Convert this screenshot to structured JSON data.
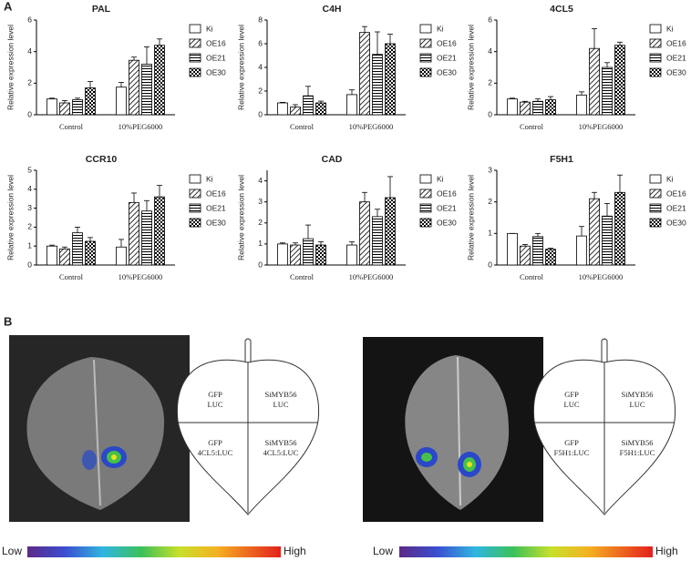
{
  "panels": [
    "A",
    "B"
  ],
  "chart_data": [
    {
      "type": "bar",
      "title": "PAL",
      "y_label": "Relative expression level",
      "categories": [
        "Control",
        "10%PEG6000"
      ],
      "ylim": [
        0,
        6
      ],
      "yticks": [
        0,
        2,
        4,
        6
      ],
      "series": [
        {
          "name": "Ki",
          "color": "#000000",
          "hatch": "none",
          "values": [
            1.0,
            1.75
          ],
          "errors": [
            0.05,
            0.3
          ]
        },
        {
          "name": "OE16",
          "color": "#000000",
          "hatch": "diagonal",
          "values": [
            0.75,
            3.45
          ],
          "errors": [
            0.15,
            0.2
          ]
        },
        {
          "name": "OE21",
          "color": "#000000",
          "hatch": "horizontal",
          "values": [
            0.95,
            3.2
          ],
          "errors": [
            0.1,
            1.1
          ]
        },
        {
          "name": "OE30",
          "color": "#000000",
          "hatch": "checker",
          "values": [
            1.7,
            4.4
          ],
          "errors": [
            0.4,
            0.4
          ]
        }
      ]
    },
    {
      "type": "bar",
      "title": "C4H",
      "y_label": "Relative expression level",
      "categories": [
        "Control",
        "10%PEG6000"
      ],
      "ylim": [
        0,
        8
      ],
      "yticks": [
        0,
        2,
        4,
        6,
        8
      ],
      "series": [
        {
          "name": "Ki",
          "color": "#000000",
          "hatch": "none",
          "values": [
            1.0,
            1.7
          ],
          "errors": [
            0.05,
            0.4
          ]
        },
        {
          "name": "OE16",
          "color": "#000000",
          "hatch": "diagonal",
          "values": [
            0.65,
            6.95
          ],
          "errors": [
            0.2,
            0.5
          ]
        },
        {
          "name": "OE21",
          "color": "#000000",
          "hatch": "horizontal",
          "values": [
            1.6,
            5.1
          ],
          "errors": [
            0.8,
            1.9
          ]
        },
        {
          "name": "OE30",
          "color": "#000000",
          "hatch": "checker",
          "values": [
            1.0,
            6.0
          ],
          "errors": [
            0.15,
            0.8
          ]
        }
      ]
    },
    {
      "type": "bar",
      "title": "4CL5",
      "y_label": "Relative expression level",
      "categories": [
        "Control",
        "10%PEG6000"
      ],
      "ylim": [
        0,
        6
      ],
      "yticks": [
        0,
        2,
        4,
        6
      ],
      "series": [
        {
          "name": "Ki",
          "color": "#000000",
          "hatch": "none",
          "values": [
            1.0,
            1.25
          ],
          "errors": [
            0.05,
            0.2
          ]
        },
        {
          "name": "OE16",
          "color": "#000000",
          "hatch": "diagonal",
          "values": [
            0.8,
            4.2
          ],
          "errors": [
            0.05,
            1.25
          ]
        },
        {
          "name": "OE21",
          "color": "#000000",
          "hatch": "horizontal",
          "values": [
            0.85,
            3.0
          ],
          "errors": [
            0.15,
            0.3
          ]
        },
        {
          "name": "OE30",
          "color": "#000000",
          "hatch": "checker",
          "values": [
            0.95,
            4.4
          ],
          "errors": [
            0.2,
            0.2
          ]
        }
      ]
    },
    {
      "type": "bar",
      "title": "CCR10",
      "y_label": "Relative expression level",
      "categories": [
        "Control",
        "10%PEG6000"
      ],
      "ylim": [
        0,
        5
      ],
      "yticks": [
        0,
        1,
        2,
        3,
        4,
        5
      ],
      "series": [
        {
          "name": "Ki",
          "color": "#000000",
          "hatch": "none",
          "values": [
            1.0,
            0.95
          ],
          "errors": [
            0.05,
            0.4
          ]
        },
        {
          "name": "OE16",
          "color": "#000000",
          "hatch": "diagonal",
          "values": [
            0.85,
            3.3
          ],
          "errors": [
            0.1,
            0.5
          ]
        },
        {
          "name": "OE21",
          "color": "#000000",
          "hatch": "horizontal",
          "values": [
            1.7,
            2.85
          ],
          "errors": [
            0.3,
            0.55
          ]
        },
        {
          "name": "OE30",
          "color": "#000000",
          "hatch": "checker",
          "values": [
            1.25,
            3.6
          ],
          "errors": [
            0.2,
            0.6
          ]
        }
      ]
    },
    {
      "type": "bar",
      "title": "CAD",
      "y_label": "Relative expression level",
      "categories": [
        "Control",
        "10%PEG6000"
      ],
      "ylim": [
        0,
        4.5
      ],
      "yticks": [
        0,
        1,
        2,
        3,
        4
      ],
      "series": [
        {
          "name": "Ki",
          "color": "#000000",
          "hatch": "none",
          "values": [
            1.0,
            0.95
          ],
          "errors": [
            0.05,
            0.15
          ]
        },
        {
          "name": "OE16",
          "color": "#000000",
          "hatch": "diagonal",
          "values": [
            0.95,
            3.0
          ],
          "errors": [
            0.1,
            0.45
          ]
        },
        {
          "name": "OE21",
          "color": "#000000",
          "hatch": "horizontal",
          "values": [
            1.25,
            2.3
          ],
          "errors": [
            0.65,
            0.35
          ]
        },
        {
          "name": "OE30",
          "color": "#000000",
          "hatch": "checker",
          "values": [
            0.95,
            3.2
          ],
          "errors": [
            0.15,
            1.0
          ]
        }
      ]
    },
    {
      "type": "bar",
      "title": "F5H1",
      "y_label": "Relative expression level",
      "categories": [
        "Control",
        "10%PEG6000"
      ],
      "ylim": [
        0,
        3
      ],
      "yticks": [
        0,
        1,
        2,
        3
      ],
      "series": [
        {
          "name": "Ki",
          "color": "#000000",
          "hatch": "none",
          "values": [
            1.0,
            0.92
          ],
          "errors": [
            0.0,
            0.3
          ]
        },
        {
          "name": "OE16",
          "color": "#000000",
          "hatch": "diagonal",
          "values": [
            0.6,
            2.1
          ],
          "errors": [
            0.05,
            0.2
          ]
        },
        {
          "name": "OE21",
          "color": "#000000",
          "hatch": "horizontal",
          "values": [
            0.9,
            1.55
          ],
          "errors": [
            0.1,
            0.4
          ]
        },
        {
          "name": "OE30",
          "color": "#000000",
          "hatch": "checker",
          "values": [
            0.5,
            2.3
          ],
          "errors": [
            0.03,
            0.55
          ]
        }
      ]
    }
  ],
  "leaf_diagrams": [
    {
      "quadrants": [
        [
          "GFP",
          "LUC"
        ],
        [
          "SiMYB56",
          "LUC"
        ],
        [
          "GFP",
          "4CL5:LUC"
        ],
        [
          "SiMYB56",
          "4CL5:LUC"
        ]
      ]
    },
    {
      "quadrants": [
        [
          "GFP",
          "LUC"
        ],
        [
          "SiMYB56",
          "LUC"
        ],
        [
          "GFP",
          "F5H1:LUC"
        ],
        [
          "SiMYB56",
          "F5H1:LUC"
        ]
      ]
    }
  ],
  "colorbars": [
    {
      "low": "Low",
      "high": "High"
    },
    {
      "low": "Low",
      "high": "High"
    }
  ]
}
